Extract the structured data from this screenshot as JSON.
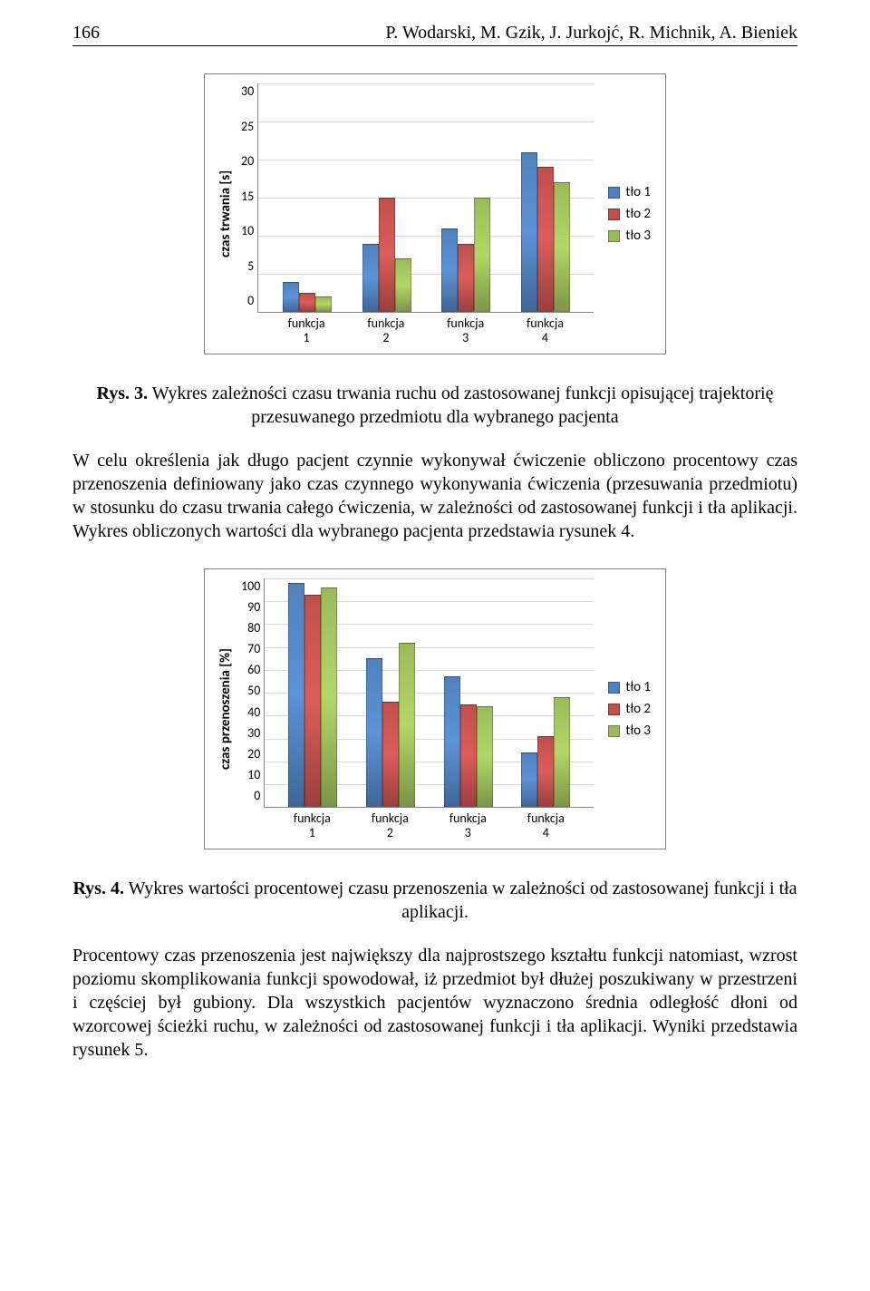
{
  "header": {
    "page_number": "166",
    "authors": "P. Wodarski, M. Gzik, J. Jurkojć, R. Michnik, A. Bieniek"
  },
  "chart1": {
    "type": "bar",
    "y_label": "czas trwania [s]",
    "categories": [
      "funkcja\n1",
      "funkcja\n2",
      "funkcja\n3",
      "funkcja\n4"
    ],
    "series": [
      {
        "name": "tło 1",
        "color": "#4f81bd",
        "values": [
          4,
          9,
          11,
          21
        ]
      },
      {
        "name": "tło 2",
        "color": "#c0504d",
        "values": [
          2.5,
          15,
          9,
          19
        ]
      },
      {
        "name": "tło 3",
        "color": "#9bbb59",
        "values": [
          2,
          7,
          15,
          17
        ]
      }
    ],
    "ylim": [
      0,
      30
    ],
    "ytick_step": 5,
    "grid_color": "#d9d9d9",
    "background": "#ffffff"
  },
  "caption1": {
    "label": "Rys. 3.",
    "text": "Wykres zależności czasu trwania ruchu od zastosowanej funkcji opisującej trajektorię przesuwanego przedmiotu dla wybranego pacjenta"
  },
  "paragraph1": "W celu określenia jak długo pacjent czynnie wykonywał ćwiczenie obliczono procentowy czas przenoszenia definiowany jako czas czynnego wykonywania ćwiczenia (przesuwania przedmiotu) w stosunku do czasu trwania całego ćwiczenia, w zależności od zastosowanej funkcji i tła aplikacji. Wykres obliczonych wartości dla wybranego pacjenta przedstawia rysunek 4.",
  "chart2": {
    "type": "bar",
    "y_label": "czas przenoszenia [%]",
    "categories": [
      "funkcja\n1",
      "funkcja\n2",
      "funkcja\n3",
      "funkcja\n4"
    ],
    "series": [
      {
        "name": "tło 1",
        "color": "#4f81bd",
        "values": [
          98,
          65,
          57,
          24
        ]
      },
      {
        "name": "tło 2",
        "color": "#c0504d",
        "values": [
          93,
          46,
          45,
          31
        ]
      },
      {
        "name": "tło 3",
        "color": "#9bbb59",
        "values": [
          96,
          72,
          44,
          48
        ]
      }
    ],
    "ylim": [
      0,
      100
    ],
    "ytick_step": 10,
    "grid_color": "#d9d9d9",
    "background": "#ffffff"
  },
  "caption2": {
    "label": "Rys. 4.",
    "text": "Wykres wartości procentowej czasu przenoszenia w zależności od zastosowanej funkcji i tła aplikacji."
  },
  "paragraph2": "Procentowy czas przenoszenia jest największy dla najprostszego kształtu funkcji natomiast, wzrost poziomu skomplikowania funkcji spowodował, iż przedmiot był dłużej poszukiwany w przestrzeni i częściej był gubiony. Dla wszystkich pacjentów wyznaczono średnia odległość dłoni od wzorcowej ścieżki ruchu, w zależności od zastosowanej funkcji i tła aplikacji. Wyniki przedstawia rysunek 5."
}
